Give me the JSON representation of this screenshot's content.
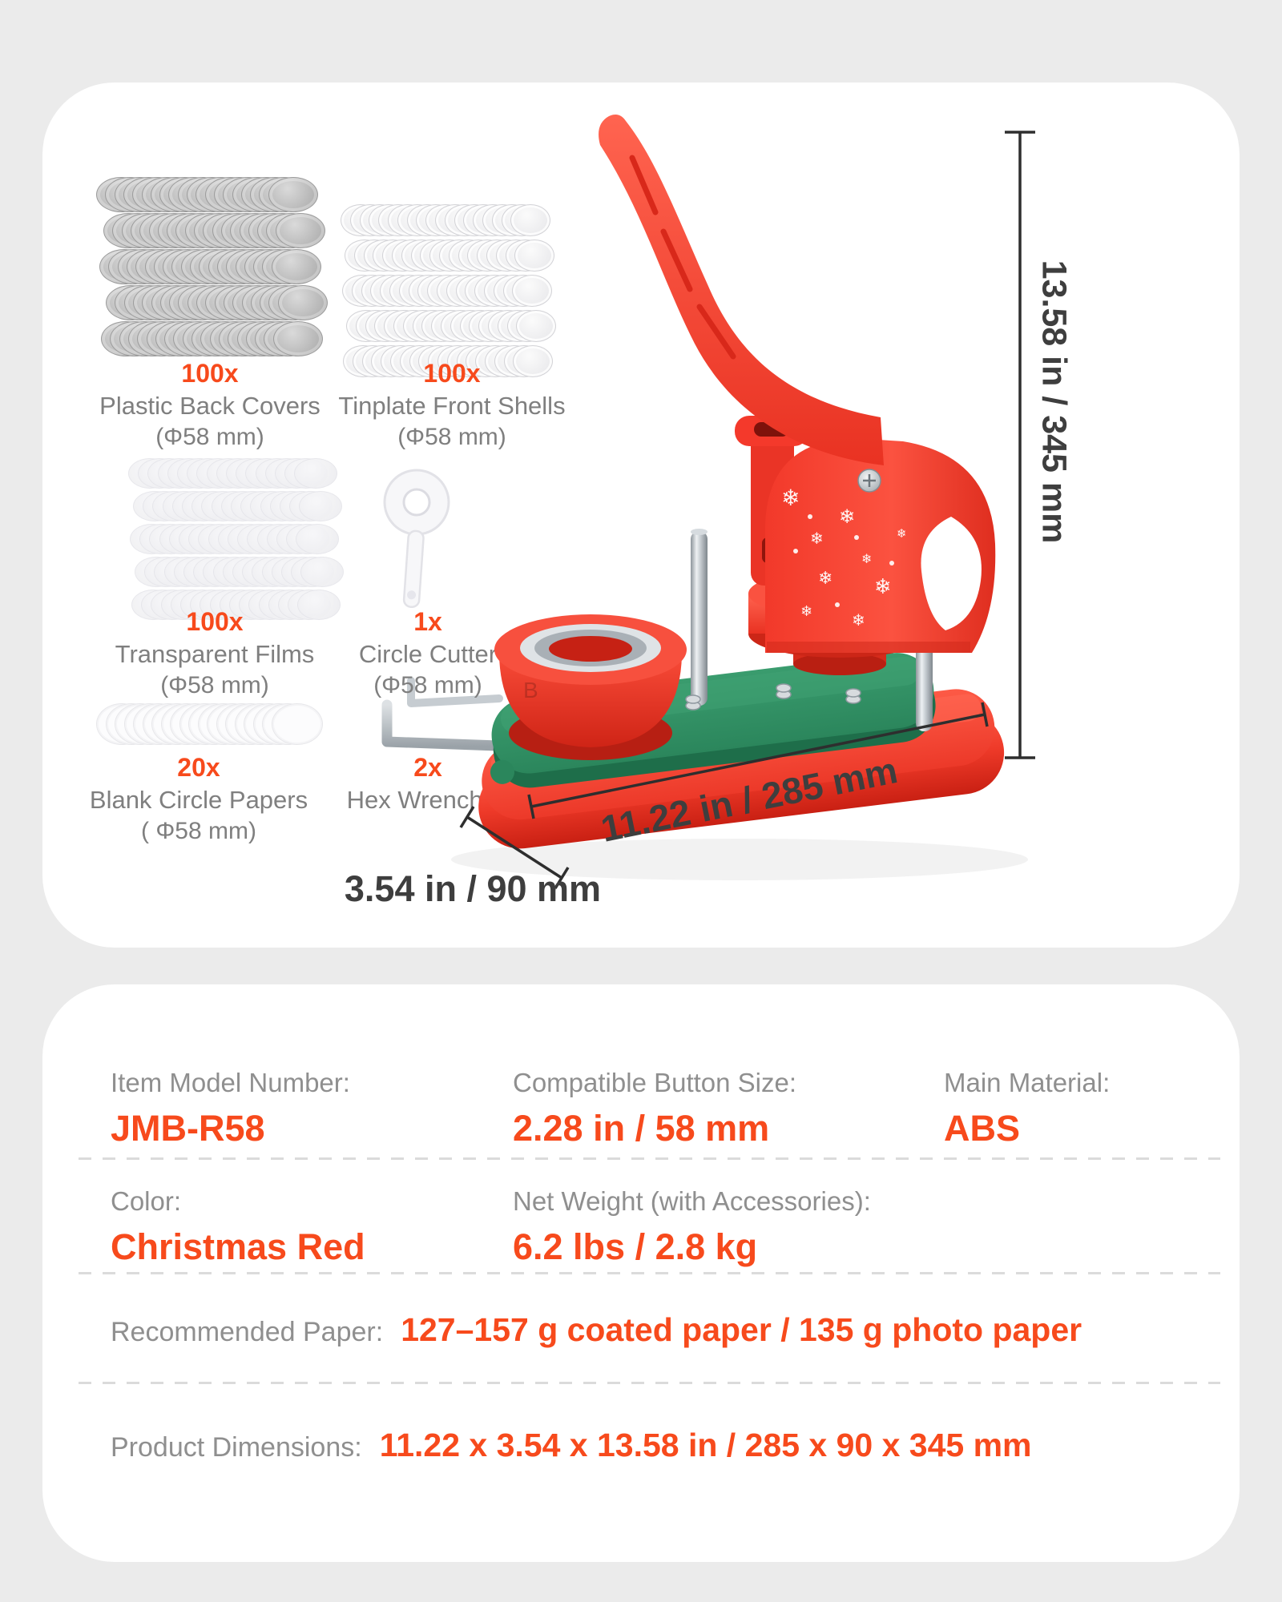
{
  "colors": {
    "accent": "#f74a1c",
    "page_background": "#ebebeb",
    "card_background": "#ffffff",
    "label_gray": "#8f8f8f",
    "kit_text_gray": "#7f7f7f",
    "dimension_text": "#3e3e3e",
    "machine_red": "#f23a2c",
    "machine_green": "#2f8f63"
  },
  "kit_card": {
    "items": [
      {
        "count": "100x",
        "name": "Plastic Back Covers",
        "size": "(Φ58 mm)"
      },
      {
        "count": "100x",
        "name": "Tinplate Front Shells",
        "size": "(Φ58 mm)"
      },
      {
        "count": "100x",
        "name": "Transparent Films",
        "size": "(Φ58 mm)"
      },
      {
        "count": "1x",
        "name": "Circle Cutter",
        "size": "(Φ58 mm)"
      },
      {
        "count": "20x",
        "name": "Blank Circle Papers",
        "size": "( Φ58 mm)"
      },
      {
        "count": "2x",
        "name": "Hex Wrenches",
        "size": ""
      }
    ],
    "dimensions": {
      "height": "13.58 in / 345 mm",
      "width": "11.22 in / 285 mm",
      "depth": "3.54 in / 90 mm"
    },
    "machine": {
      "snowflake": "❄",
      "die_letter": "B"
    }
  },
  "spec_card": {
    "fields": [
      {
        "label": "Item Model Number:",
        "value": "JMB-R58"
      },
      {
        "label": "Compatible Button Size:",
        "value": "2.28 in / 58 mm"
      },
      {
        "label": "Main Material:",
        "value": "ABS"
      },
      {
        "label": "Color:",
        "value": "Christmas Red"
      },
      {
        "label": "Net Weight (with Accessories):",
        "value": "6.2 lbs / 2.8 kg"
      },
      {
        "label": "Recommended Paper:",
        "value": "127–157 g coated paper / 135 g photo paper"
      },
      {
        "label": "Product Dimensions:",
        "value": "11.22 x 3.54 x 13.58 in / 285 x 90 x 345 mm"
      }
    ]
  }
}
